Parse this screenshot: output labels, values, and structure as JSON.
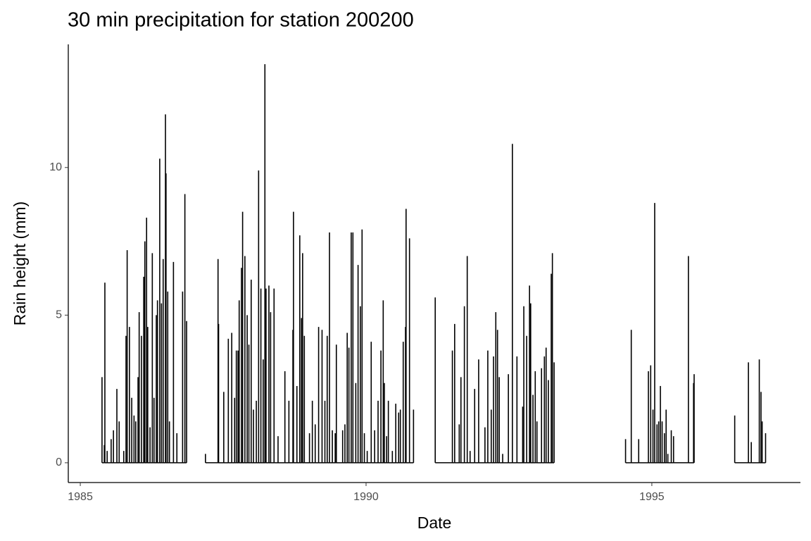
{
  "chart_data": {
    "type": "spike",
    "title": "30 min precipitation for station 200200",
    "x_label": "Date",
    "y_label": "Rain height (mm)",
    "color": "#000000",
    "xlim": [
      1984.79,
      1997.6
    ],
    "xticks": [
      1985,
      1990,
      1995
    ],
    "ylim": [
      -0.67,
      14.17
    ],
    "yticks": [
      0,
      5,
      10
    ],
    "x": [
      1985.38,
      1985.42,
      1985.43,
      1985.47,
      1985.54,
      1985.58,
      1985.64,
      1985.68,
      1985.76,
      1985.8,
      1985.82,
      1985.86,
      1985.9,
      1985.94,
      1985.97,
      1986.01,
      1986.03,
      1986.07,
      1986.11,
      1986.13,
      1986.16,
      1986.18,
      1986.22,
      1986.26,
      1986.29,
      1986.33,
      1986.35,
      1986.39,
      1986.42,
      1986.45,
      1986.49,
      1986.5,
      1986.53,
      1986.56,
      1986.63,
      1986.69,
      1986.79,
      1986.83,
      1986.86,
      1987.19,
      1987.41,
      1987.42,
      1987.51,
      1987.59,
      1987.65,
      1987.7,
      1987.73,
      1987.76,
      1987.78,
      1987.82,
      1987.84,
      1987.88,
      1987.92,
      1987.95,
      1987.99,
      1988.03,
      1988.08,
      1988.12,
      1988.16,
      1988.2,
      1988.23,
      1988.25,
      1988.3,
      1988.33,
      1988.39,
      1988.46,
      1988.58,
      1988.65,
      1988.72,
      1988.73,
      1988.79,
      1988.84,
      1988.87,
      1988.89,
      1988.92,
      1989.01,
      1989.06,
      1989.11,
      1989.17,
      1989.23,
      1989.28,
      1989.32,
      1989.36,
      1989.41,
      1989.46,
      1989.48,
      1989.59,
      1989.63,
      1989.67,
      1989.7,
      1989.74,
      1989.77,
      1989.82,
      1989.86,
      1989.9,
      1989.93,
      1989.97,
      1990.02,
      1990.09,
      1990.15,
      1990.21,
      1990.26,
      1990.3,
      1990.32,
      1990.36,
      1990.39,
      1990.46,
      1990.52,
      1990.57,
      1990.6,
      1990.65,
      1990.69,
      1990.7,
      1990.76,
      1990.83,
      1991.21,
      1991.51,
      1991.55,
      1991.63,
      1991.66,
      1991.72,
      1991.77,
      1991.82,
      1991.9,
      1991.97,
      1992.08,
      1992.13,
      1992.19,
      1992.23,
      1992.27,
      1992.3,
      1992.33,
      1992.39,
      1992.49,
      1992.56,
      1992.64,
      1992.74,
      1992.76,
      1992.81,
      1992.86,
      1992.88,
      1992.92,
      1992.96,
      1992.99,
      1993.07,
      1993.12,
      1993.15,
      1993.19,
      1993.24,
      1993.26,
      1993.29,
      1994.54,
      1994.64,
      1994.77,
      1994.94,
      1994.98,
      1995.02,
      1995.05,
      1995.09,
      1995.12,
      1995.15,
      1995.18,
      1995.22,
      1995.25,
      1995.28,
      1995.34,
      1995.38,
      1995.64,
      1995.73,
      1995.74,
      1996.45,
      1996.69,
      1996.74,
      1996.88,
      1996.91,
      1996.93,
      1996.99
    ],
    "values": [
      2.9,
      0.6,
      6.1,
      0.4,
      0.8,
      1.1,
      2.5,
      1.4,
      0.4,
      4.3,
      7.2,
      4.6,
      2.2,
      1.6,
      1.4,
      2.9,
      5.1,
      4.3,
      6.3,
      7.5,
      8.3,
      4.6,
      1.2,
      7.1,
      2.2,
      5.0,
      5.5,
      10.3,
      5.4,
      6.9,
      11.8,
      9.8,
      5.8,
      1.4,
      6.8,
      1.0,
      5.8,
      9.1,
      4.8,
      0.3,
      6.9,
      4.7,
      2.4,
      4.2,
      4.4,
      2.2,
      3.8,
      3.8,
      5.5,
      6.6,
      8.5,
      7.0,
      5.0,
      4.0,
      6.2,
      1.8,
      2.1,
      9.9,
      5.9,
      3.5,
      13.5,
      5.9,
      6.0,
      5.1,
      5.9,
      0.9,
      3.1,
      2.1,
      4.5,
      8.5,
      2.6,
      7.7,
      4.9,
      7.1,
      4.3,
      1.0,
      2.1,
      1.3,
      4.6,
      4.5,
      2.1,
      4.3,
      7.8,
      1.1,
      1.0,
      4.0,
      1.1,
      1.3,
      4.4,
      3.9,
      7.8,
      7.8,
      2.7,
      6.7,
      5.3,
      7.9,
      1.0,
      0.4,
      4.1,
      1.1,
      2.1,
      3.8,
      5.5,
      2.7,
      0.9,
      2.1,
      0.4,
      2.0,
      1.7,
      1.8,
      4.1,
      4.6,
      8.6,
      7.6,
      1.8,
      5.6,
      3.8,
      4.7,
      1.3,
      2.9,
      5.3,
      7.0,
      0.4,
      2.5,
      3.5,
      1.2,
      3.8,
      1.8,
      3.6,
      5.1,
      4.5,
      2.9,
      0.3,
      3.0,
      10.8,
      3.6,
      1.9,
      5.3,
      4.3,
      6.0,
      5.4,
      2.3,
      3.1,
      1.4,
      3.2,
      3.6,
      3.9,
      2.8,
      6.4,
      7.1,
      3.4,
      0.8,
      4.5,
      0.8,
      3.1,
      3.3,
      1.8,
      8.8,
      1.3,
      1.4,
      2.6,
      1.4,
      1.0,
      1.8,
      0.3,
      1.1,
      0.9,
      7.0,
      2.7,
      3.0,
      1.6,
      3.4,
      0.7,
      3.5,
      2.4,
      1.4,
      1.0
    ]
  }
}
